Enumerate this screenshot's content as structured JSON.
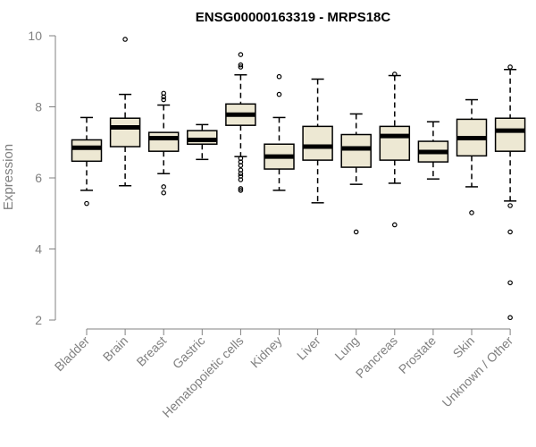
{
  "chart_data": {
    "type": "boxplot",
    "title": "ENSG00000163319 - MRPS18C",
    "xlabel": "",
    "ylabel": "Expression",
    "ylim": [
      2,
      10
    ],
    "yticks": [
      2,
      4,
      6,
      8,
      10
    ],
    "grid": false,
    "box_fill": "#ede8d3",
    "box_stroke": "#000000",
    "axis_color": "#808080",
    "categories": [
      "Bladder",
      "Brain",
      "Breast",
      "Gastric",
      "Hematopoietic cells",
      "Kidney",
      "Liver",
      "Lung",
      "Pancreas",
      "Prostate",
      "Skin",
      "Unknown / Other"
    ],
    "series": [
      {
        "category": "Bladder",
        "min": 5.65,
        "q1": 6.47,
        "median": 6.85,
        "q3": 7.07,
        "max": 7.7,
        "outliers": [
          5.28
        ]
      },
      {
        "category": "Brain",
        "min": 5.78,
        "q1": 6.88,
        "median": 7.42,
        "q3": 7.68,
        "max": 8.35,
        "outliers": [
          9.9
        ]
      },
      {
        "category": "Breast",
        "min": 6.12,
        "q1": 6.75,
        "median": 7.12,
        "q3": 7.28,
        "max": 8.05,
        "outliers": [
          8.38,
          8.28,
          8.2,
          5.75,
          5.58
        ]
      },
      {
        "category": "Gastric",
        "min": 6.52,
        "q1": 6.95,
        "median": 7.07,
        "q3": 7.33,
        "max": 7.5,
        "outliers": []
      },
      {
        "category": "Hematopoietic cells",
        "min": 6.6,
        "q1": 7.48,
        "median": 7.78,
        "q3": 8.08,
        "max": 8.9,
        "outliers": [
          9.47,
          9.18,
          9.12,
          6.55,
          6.45,
          6.35,
          6.22,
          6.12,
          6.05,
          5.95,
          5.7,
          5.65
        ]
      },
      {
        "category": "Kidney",
        "min": 5.65,
        "q1": 6.25,
        "median": 6.6,
        "q3": 6.95,
        "max": 7.7,
        "outliers": [
          8.85,
          8.35
        ]
      },
      {
        "category": "Liver",
        "min": 5.3,
        "q1": 6.5,
        "median": 6.88,
        "q3": 7.45,
        "max": 8.78,
        "outliers": []
      },
      {
        "category": "Lung",
        "min": 5.82,
        "q1": 6.3,
        "median": 6.83,
        "q3": 7.22,
        "max": 7.8,
        "outliers": [
          4.48
        ]
      },
      {
        "category": "Pancreas",
        "min": 5.85,
        "q1": 6.5,
        "median": 7.18,
        "q3": 7.45,
        "max": 8.88,
        "outliers": [
          8.92,
          4.68
        ]
      },
      {
        "category": "Prostate",
        "min": 5.97,
        "q1": 6.45,
        "median": 6.73,
        "q3": 7.03,
        "max": 7.58,
        "outliers": []
      },
      {
        "category": "Skin",
        "min": 5.75,
        "q1": 6.62,
        "median": 7.12,
        "q3": 7.65,
        "max": 8.2,
        "outliers": [
          5.02
        ]
      },
      {
        "category": "Unknown / Other",
        "min": 5.35,
        "q1": 6.75,
        "median": 7.33,
        "q3": 7.68,
        "max": 9.05,
        "outliers": [
          9.12,
          5.22,
          4.48,
          3.05,
          2.07
        ]
      }
    ]
  }
}
